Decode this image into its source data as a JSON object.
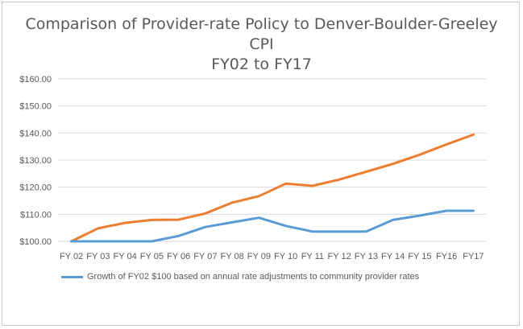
{
  "chart_data": {
    "type": "line",
    "title_lines": [
      "Comparison of Provider-rate Policy to Denver-Boulder-Greeley",
      "CPI",
      "FY02 to FY17"
    ],
    "categories": [
      "FY 02",
      "FY 03",
      "FY 04",
      "FY 05",
      "FY 06",
      "FY 07",
      "FY 08",
      "FY 09",
      "FY 10",
      "FY 11",
      "FY 12",
      "FY 13",
      "FY 14",
      "FY 15",
      "FY16",
      "FY17"
    ],
    "yticks": [
      "$100.00",
      "$110.00",
      "$120.00",
      "$130.00",
      "$140.00",
      "$150.00",
      "$160.00"
    ],
    "ylim": [
      100,
      160
    ],
    "grid": true,
    "legend_position": "bottom",
    "series": [
      {
        "name": "Growth of FY02 $100 based on annual rate adjustments to community provider rates",
        "color": "#5b9bd5",
        "values": [
          100,
          100,
          100,
          100,
          102,
          105.3,
          107,
          108.7,
          105.7,
          103.6,
          103.6,
          103.6,
          107.9,
          109.5,
          111.3,
          111.3
        ]
      },
      {
        "color": "#ed7d31",
        "values": [
          100,
          104.8,
          106.8,
          107.9,
          108,
          110.3,
          114.3,
          116.7,
          121.3,
          120.5,
          122.8,
          125.7,
          128.6,
          132,
          135.8,
          139.4
        ]
      }
    ]
  }
}
